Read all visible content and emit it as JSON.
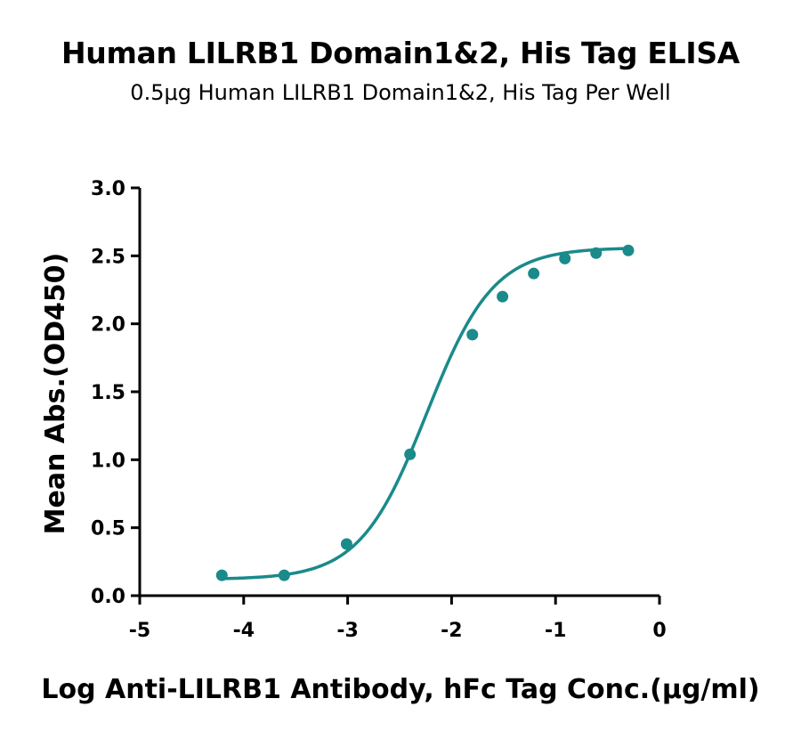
{
  "chart_data": {
    "type": "scatter",
    "title": "Human LILRB1 Domain1&2, His Tag ELISA",
    "subtitle": "0.5μg Human LILRB1 Domain1&2, His Tag Per Well",
    "xlabel": "Log Anti-LILRB1 Antibody, hFc Tag Conc.(μg/ml)",
    "ylabel": "Mean Abs.(OD450)",
    "xlim": [
      -5,
      0
    ],
    "ylim": [
      0,
      3
    ],
    "x_ticks": [
      -5,
      -4,
      -3,
      -2,
      -1,
      0
    ],
    "y_ticks": [
      0.0,
      0.5,
      1.0,
      1.5,
      2.0,
      2.5,
      3.0
    ],
    "x_tick_labels": [
      "-5",
      "-4",
      "-3",
      "-2",
      "-1",
      "0"
    ],
    "y_tick_labels": [
      "0.0",
      "0.5",
      "1.0",
      "1.5",
      "2.0",
      "2.5",
      "3.0"
    ],
    "grid": false,
    "series": [
      {
        "color": "#1a8a8a",
        "fit": "4PL sigmoid",
        "x": [
          -4.21,
          -3.61,
          -3.01,
          -2.4,
          -1.8,
          -1.51,
          -1.21,
          -0.91,
          -0.61,
          -0.3
        ],
        "y": [
          0.15,
          0.15,
          0.38,
          1.04,
          1.92,
          2.2,
          2.37,
          2.48,
          2.52,
          2.54
        ]
      }
    ],
    "fit_params": {
      "bottom": 0.12,
      "top": 2.56,
      "logEC50": -2.24,
      "hill": 1.35
    }
  }
}
